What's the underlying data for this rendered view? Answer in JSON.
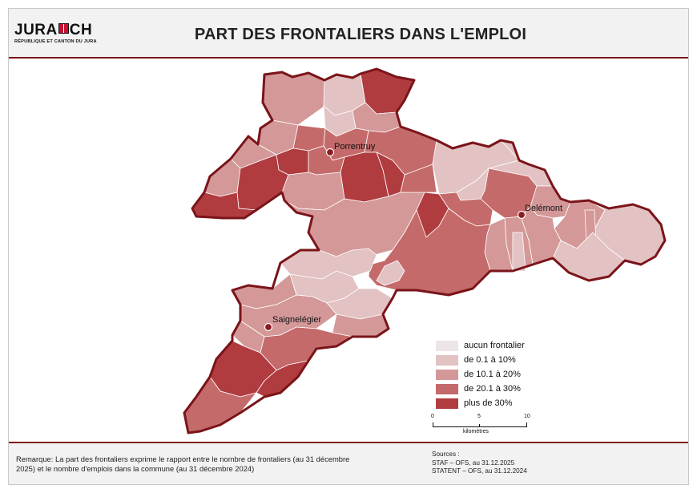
{
  "header": {
    "logo_text_left": "JURA",
    "logo_text_right": "CH",
    "logo_subtitle": "RÉPUBLIQUE ET CANTON DU JURA",
    "title": "PART DES FRONTALIERS DANS L'EMPLOI"
  },
  "colors": {
    "aucun": "#ede6e6",
    "c1": "#e2c2c2",
    "c2": "#d49898",
    "c3": "#c56a6a",
    "c4": "#b03c40",
    "border": "#7a1419",
    "accent": "#7a1419"
  },
  "map": {
    "cities": [
      {
        "name": "Porrentruy"
      },
      {
        "name": "Delémont"
      },
      {
        "name": "Saignelégier"
      }
    ]
  },
  "legend": {
    "items": [
      {
        "label": "aucun frontalier",
        "color": "#ede6e6"
      },
      {
        "label": "de 0.1 à 10%",
        "color": "#e2c2c2"
      },
      {
        "label": "de 10.1 à 20%",
        "color": "#d49898"
      },
      {
        "label": "de 20.1 à 30%",
        "color": "#c56a6a"
      },
      {
        "label": "plus de 30%",
        "color": "#b03c40"
      }
    ]
  },
  "scalebar": {
    "ticks": [
      "0",
      "5",
      "10"
    ],
    "unit": "kilomètres"
  },
  "footer": {
    "remark": "Remarque: La part des frontaliers exprime le rapport entre le nombre de frontaliers (au 31 décembre 2025) et le nombre d'emplois dans la commune (au 31 décembre 2024)",
    "sources_title": "Sources :",
    "source_1": "STAF – OFS, au 31.12.2025",
    "source_2": "STATENT – OFS, au 31.12.2024"
  }
}
